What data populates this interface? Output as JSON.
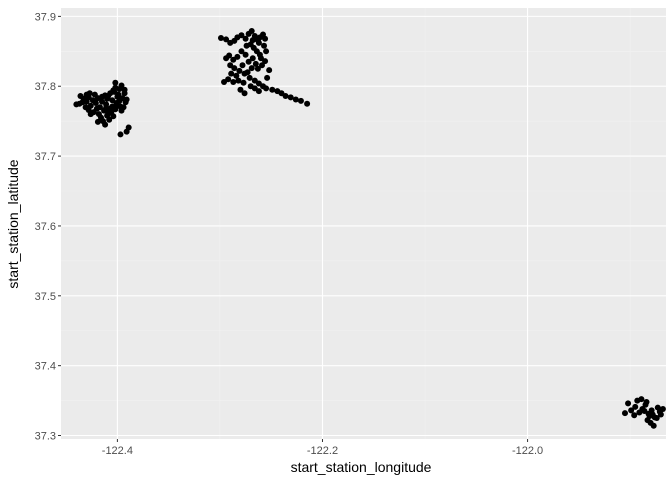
{
  "chart_data": {
    "type": "scatter",
    "title": "",
    "xlabel": "start_station_longitude",
    "ylabel": "start_station_latitude",
    "xlim": [
      -122.455,
      -121.865
    ],
    "ylim": [
      37.295,
      37.912
    ],
    "xticks": [
      -122.4,
      -122.2,
      -122.0
    ],
    "xtick_labels": [
      "-122.4",
      "-122.2",
      "-122.0"
    ],
    "yticks": [
      37.3,
      37.4,
      37.5,
      37.6,
      37.7,
      37.8,
      37.9
    ],
    "ytick_labels": [
      "37.3",
      "37.4",
      "37.5",
      "37.6",
      "37.7",
      "37.8",
      "37.9"
    ],
    "grid": true,
    "legend": "none",
    "colors": {
      "panel": "#ebebeb",
      "point": "#000000",
      "grid": "#ffffff"
    },
    "points": [
      [
        -122.437,
        37.775
      ],
      [
        -122.433,
        37.782
      ],
      [
        -122.43,
        37.778
      ],
      [
        -122.428,
        37.784
      ],
      [
        -122.426,
        37.772
      ],
      [
        -122.424,
        37.78
      ],
      [
        -122.421,
        37.776
      ],
      [
        -122.419,
        37.783
      ],
      [
        -122.417,
        37.77
      ],
      [
        -122.415,
        37.778
      ],
      [
        -122.413,
        37.765
      ],
      [
        -122.411,
        37.774
      ],
      [
        -122.409,
        37.786
      ],
      [
        -122.407,
        37.768
      ],
      [
        -122.405,
        37.78
      ],
      [
        -122.403,
        37.792
      ],
      [
        -122.401,
        37.776
      ],
      [
        -122.399,
        37.788
      ],
      [
        -122.397,
        37.771
      ],
      [
        -122.395,
        37.783
      ],
      [
        -122.393,
        37.79
      ],
      [
        -122.392,
        37.777
      ],
      [
        -122.42,
        37.768
      ],
      [
        -122.418,
        37.76
      ],
      [
        -122.416,
        37.755
      ],
      [
        -122.414,
        37.75
      ],
      [
        -122.412,
        37.745
      ],
      [
        -122.41,
        37.758
      ],
      [
        -122.408,
        37.752
      ],
      [
        -122.406,
        37.762
      ],
      [
        -122.404,
        37.757
      ],
      [
        -122.402,
        37.767
      ],
      [
        -122.4,
        37.772
      ],
      [
        -122.398,
        37.779
      ],
      [
        -122.396,
        37.765
      ],
      [
        -122.394,
        37.77
      ],
      [
        -122.426,
        37.76
      ],
      [
        -122.423,
        37.763
      ],
      [
        -122.431,
        37.77
      ],
      [
        -122.434,
        37.777
      ],
      [
        -122.402,
        37.798
      ],
      [
        -122.398,
        37.796
      ],
      [
        -122.404,
        37.794
      ],
      [
        -122.4,
        37.785
      ],
      [
        -122.407,
        37.79
      ],
      [
        -122.41,
        37.782
      ],
      [
        -122.412,
        37.787
      ],
      [
        -122.415,
        37.785
      ],
      [
        -122.422,
        37.788
      ],
      [
        -122.427,
        37.79
      ],
      [
        -122.43,
        37.788
      ],
      [
        -122.436,
        37.786
      ],
      [
        -122.44,
        37.774
      ],
      [
        -122.428,
        37.766
      ],
      [
        -122.419,
        37.749
      ],
      [
        -122.397,
        37.731
      ],
      [
        -122.391,
        37.735
      ],
      [
        -122.389,
        37.741
      ],
      [
        -122.402,
        37.805
      ],
      [
        -122.396,
        37.801
      ],
      [
        -122.393,
        37.795
      ],
      [
        -122.391,
        37.781
      ],
      [
        -122.409,
        37.763
      ],
      [
        -122.405,
        37.771
      ],
      [
        -122.411,
        37.769
      ],
      [
        -122.299,
        37.869
      ],
      [
        -122.294,
        37.867
      ],
      [
        -122.29,
        37.862
      ],
      [
        -122.286,
        37.865
      ],
      [
        -122.283,
        37.87
      ],
      [
        -122.279,
        37.873
      ],
      [
        -122.275,
        37.868
      ],
      [
        -122.272,
        37.875
      ],
      [
        -122.269,
        37.879
      ],
      [
        -122.266,
        37.872
      ],
      [
        -122.263,
        37.866
      ],
      [
        -122.261,
        37.87
      ],
      [
        -122.258,
        37.874
      ],
      [
        -122.256,
        37.868
      ],
      [
        -122.27,
        37.86
      ],
      [
        -122.267,
        37.855
      ],
      [
        -122.264,
        37.85
      ],
      [
        -122.261,
        37.845
      ],
      [
        -122.268,
        37.84
      ],
      [
        -122.272,
        37.835
      ],
      [
        -122.275,
        37.845
      ],
      [
        -122.279,
        37.85
      ],
      [
        -122.283,
        37.842
      ],
      [
        -122.287,
        37.838
      ],
      [
        -122.291,
        37.844
      ],
      [
        -122.294,
        37.84
      ],
      [
        -122.29,
        37.83
      ],
      [
        -122.286,
        37.826
      ],
      [
        -122.281,
        37.822
      ],
      [
        -122.276,
        37.818
      ],
      [
        -122.271,
        37.812
      ],
      [
        -122.266,
        37.808
      ],
      [
        -122.262,
        37.804
      ],
      [
        -122.258,
        37.8
      ],
      [
        -122.263,
        37.825
      ],
      [
        -122.259,
        37.83
      ],
      [
        -122.256,
        37.836
      ],
      [
        -122.26,
        37.84
      ],
      [
        -122.265,
        37.832
      ],
      [
        -122.269,
        37.826
      ],
      [
        -122.273,
        37.82
      ],
      [
        -122.277,
        37.805
      ],
      [
        -122.282,
        37.808
      ],
      [
        -122.287,
        37.806
      ],
      [
        -122.292,
        37.81
      ],
      [
        -122.296,
        37.806
      ],
      [
        -122.27,
        37.8
      ],
      [
        -122.266,
        37.797
      ],
      [
        -122.262,
        37.793
      ],
      [
        -122.255,
        37.797
      ],
      [
        -122.249,
        37.795
      ],
      [
        -122.244,
        37.793
      ],
      [
        -122.24,
        37.79
      ],
      [
        -122.236,
        37.786
      ],
      [
        -122.231,
        37.784
      ],
      [
        -122.226,
        37.781
      ],
      [
        -122.221,
        37.779
      ],
      [
        -122.215,
        37.775
      ],
      [
        -122.28,
        37.795
      ],
      [
        -122.276,
        37.79
      ],
      [
        -122.255,
        37.85
      ],
      [
        -122.257,
        37.858
      ],
      [
        -122.262,
        37.862
      ],
      [
        -122.268,
        37.866
      ],
      [
        -122.274,
        37.858
      ],
      [
        -122.278,
        37.83
      ],
      [
        -122.284,
        37.815
      ],
      [
        -122.289,
        37.818
      ],
      [
        -122.254,
        37.812
      ],
      [
        -122.252,
        37.823
      ],
      [
        -121.905,
        37.332
      ],
      [
        -121.899,
        37.336
      ],
      [
        -121.895,
        37.341
      ],
      [
        -121.891,
        37.333
      ],
      [
        -121.888,
        37.338
      ],
      [
        -121.885,
        37.344
      ],
      [
        -121.882,
        37.331
      ],
      [
        -121.879,
        37.336
      ],
      [
        -121.876,
        37.326
      ],
      [
        -121.873,
        37.34
      ],
      [
        -121.87,
        37.33
      ],
      [
        -121.883,
        37.322
      ],
      [
        -121.88,
        37.318
      ],
      [
        -121.877,
        37.314
      ],
      [
        -121.874,
        37.325
      ],
      [
        -121.893,
        37.35
      ],
      [
        -121.889,
        37.352
      ],
      [
        -121.884,
        37.348
      ],
      [
        -121.881,
        37.328
      ],
      [
        -121.886,
        37.335
      ],
      [
        -121.868,
        37.338
      ],
      [
        -121.871,
        37.334
      ],
      [
        -121.878,
        37.33
      ],
      [
        -121.896,
        37.329
      ],
      [
        -121.902,
        37.346
      ]
    ]
  }
}
